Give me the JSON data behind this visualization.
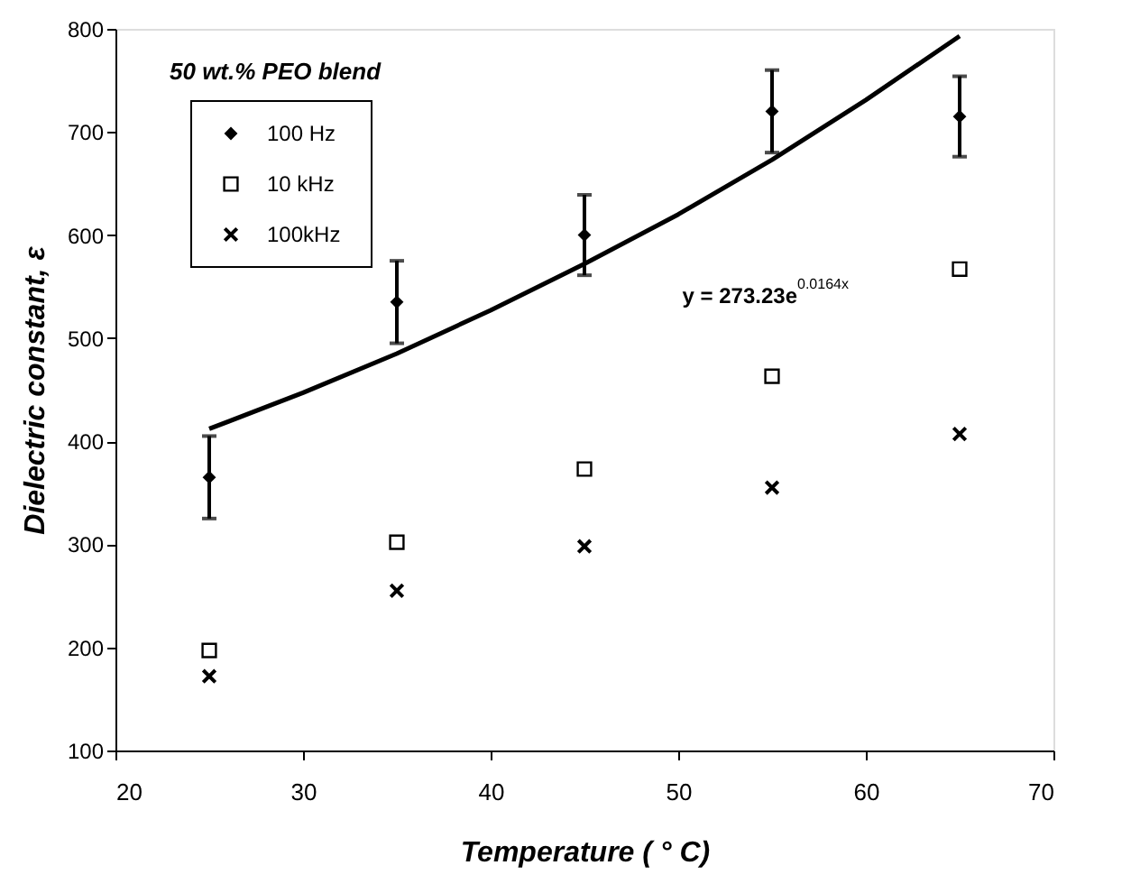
{
  "chart_data": {
    "type": "scatter",
    "xlabel": "Temperature ( ° C)",
    "ylabel": "Dielectric constant, ε",
    "legend_title": "50 wt.% PEO blend",
    "x": [
      25,
      35,
      45,
      55,
      65
    ],
    "series": [
      {
        "name": "100 Hz",
        "color": "#000000",
        "marker": "diamond",
        "values": [
          365,
          535,
          600,
          720,
          715
        ],
        "errors": [
          40,
          40,
          39,
          40,
          39
        ]
      },
      {
        "name": "10 kHz",
        "color": "#000000",
        "marker": "square",
        "values": [
          197,
          302,
          373,
          463,
          567
        ]
      },
      {
        "name": "100kHz",
        "color": "#000000",
        "marker": "cross",
        "values": [
          172,
          255,
          298,
          355,
          407
        ]
      },
      {
        "type": "line",
        "color": "#000000",
        "line_style": "solid",
        "x": [
          25,
          30,
          35,
          40,
          45,
          50,
          55,
          60,
          65
        ],
        "values": [
          412,
          447,
          485,
          527,
          572,
          620,
          673,
          731,
          793
        ]
      }
    ],
    "annotations": [
      "y = 273.23e$^{0.0164x}$"
    ],
    "xlim": [
      20,
      70
    ],
    "xticks": [
      20,
      30,
      40,
      50,
      60,
      70
    ],
    "ylim": [
      100,
      800
    ],
    "yticks": [
      100,
      200,
      300,
      400,
      500,
      600,
      700,
      800
    ],
    "grid": false,
    "legend": "top left"
  }
}
